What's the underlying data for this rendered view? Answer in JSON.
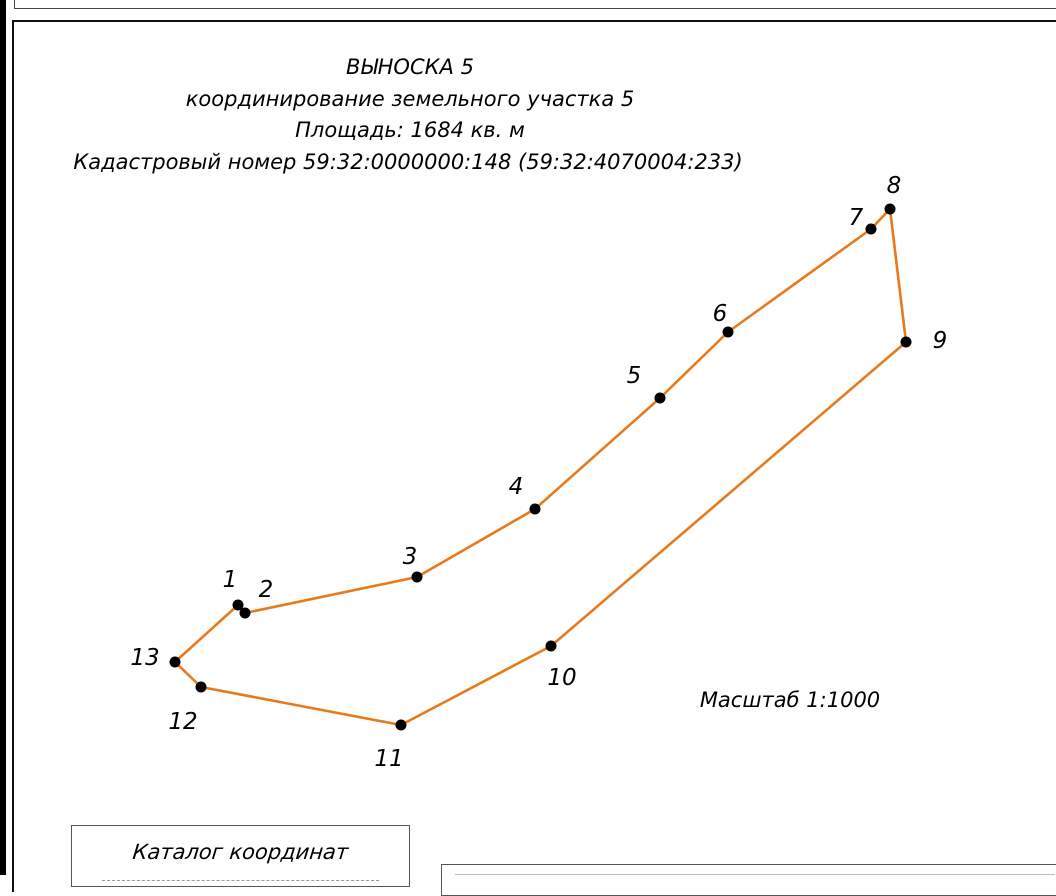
{
  "header": {
    "title": "ВЫНОСКА 5",
    "subtitle": "координирование земельного участка 5",
    "area": "Площадь: 1684 кв. м",
    "cadastral": "Кадастровый номер 59:32:0000000:148 (59:32:4070004:233)"
  },
  "scale_label": "Масштаб 1:1000",
  "catalog": {
    "title": "Каталог координат"
  },
  "colors": {
    "boundary": "#e87a1c",
    "point": "#000000",
    "frame": "#111111"
  },
  "points": [
    {
      "label": "1"
    },
    {
      "label": "2"
    },
    {
      "label": "3"
    },
    {
      "label": "4"
    },
    {
      "label": "5"
    },
    {
      "label": "6"
    },
    {
      "label": "7"
    },
    {
      "label": "8"
    },
    {
      "label": "9"
    },
    {
      "label": "10"
    },
    {
      "label": "11"
    },
    {
      "label": "12"
    },
    {
      "label": "13"
    }
  ]
}
